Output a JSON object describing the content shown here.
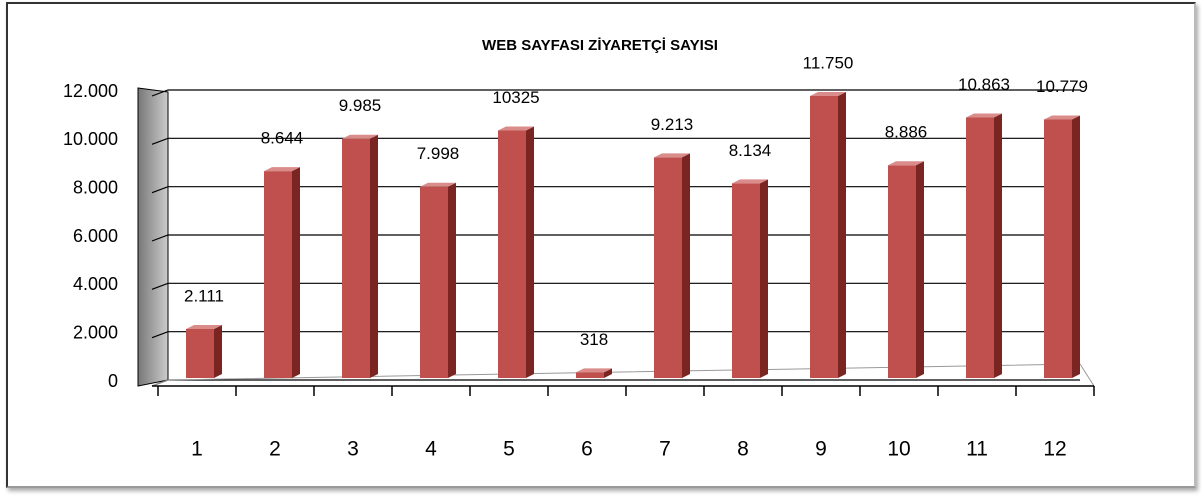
{
  "chart_data": {
    "type": "bar3d",
    "title": "WEB SAYFASI ZİYARETÇİ SAYISI",
    "categories": [
      "1",
      "2",
      "3",
      "4",
      "5",
      "6",
      "7",
      "8",
      "9",
      "10",
      "11",
      "12"
    ],
    "values": [
      2111,
      8644,
      9985,
      7998,
      10325,
      318,
      9213,
      8134,
      11750,
      8886,
      10863,
      10779
    ],
    "value_labels": [
      "2.111",
      "8.644",
      "9.985",
      "7.998",
      "10325",
      "318",
      "9.213",
      "8.134",
      "11.750",
      "8.886",
      "10.863",
      "10.779"
    ],
    "color": "#c0504d",
    "ylim": [
      0,
      12000
    ],
    "yticks": [
      0,
      {
        "value": 2000,
        "label": "2.000"
      },
      {
        "value": 4000,
        "label": "4.000"
      },
      {
        "value": 6000,
        "label": "6.000"
      },
      {
        "value": 8000,
        "label": "8.000"
      },
      {
        "value": 10000,
        "label": "10.000"
      },
      {
        "value": 12000,
        "label": "12.000"
      }
    ],
    "grid": true
  }
}
